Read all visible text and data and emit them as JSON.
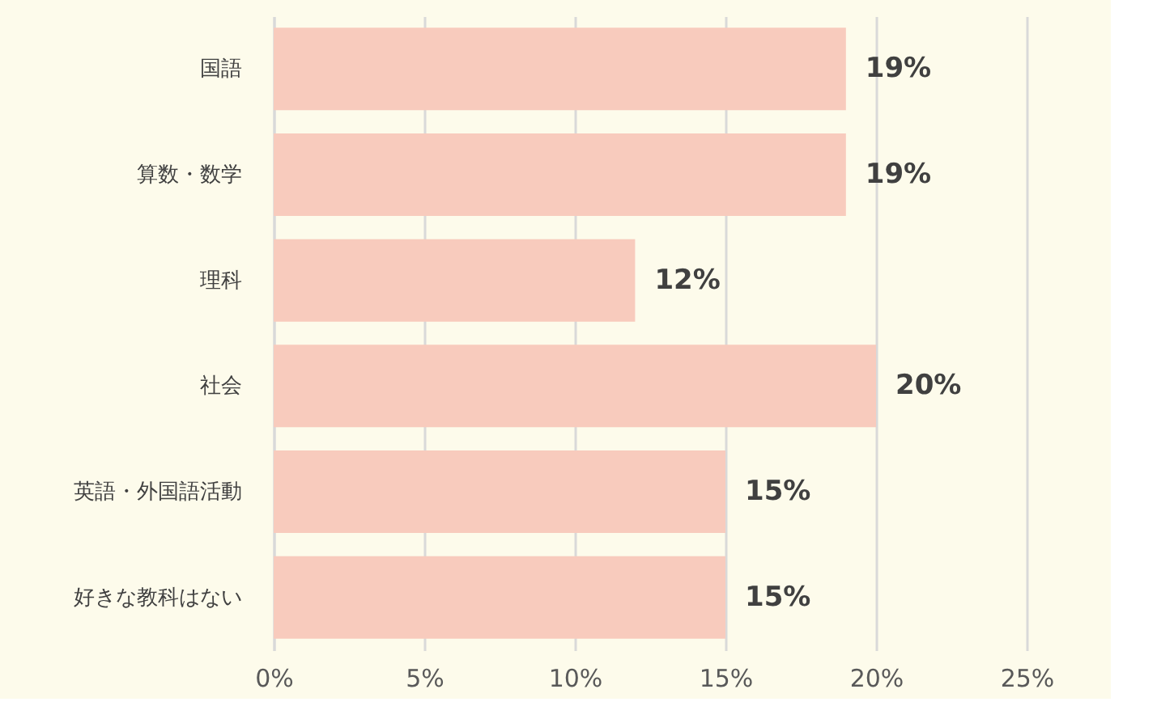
{
  "chart_data": {
    "type": "bar",
    "orientation": "horizontal",
    "categories": [
      "国語",
      "算数・数学",
      "理科",
      "社会",
      "英語・外国語活動",
      "好きな教科はない"
    ],
    "values": [
      19,
      19,
      12,
      20,
      15,
      15
    ],
    "value_labels": [
      "19%",
      "19%",
      "12%",
      "20%",
      "15%",
      "15%"
    ],
    "color": "#f8cbbd",
    "xlim": [
      0,
      25
    ],
    "xticks": [
      {
        "value": 0,
        "label": "0%"
      },
      {
        "value": 5,
        "label": "5%"
      },
      {
        "value": 10,
        "label": "10%"
      },
      {
        "value": 15,
        "label": "15%"
      },
      {
        "value": 20,
        "label": "20%"
      },
      {
        "value": 25,
        "label": "25%"
      }
    ],
    "grid": "x"
  }
}
